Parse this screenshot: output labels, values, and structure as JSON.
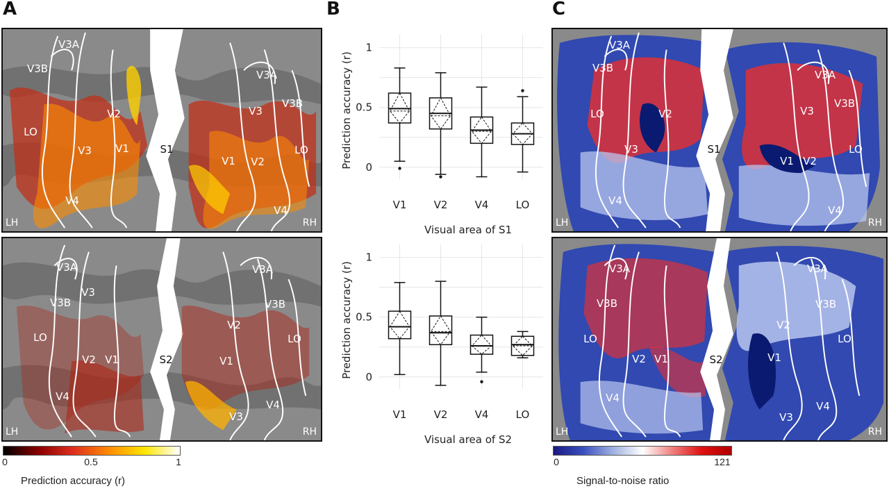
{
  "panels": {
    "a_letter": "A",
    "b_letter": "B",
    "c_letter": "C"
  },
  "brain_labels": {
    "lh": "LH",
    "rh": "RH",
    "s1": "S1",
    "s2": "S2",
    "v1": "V1",
    "v2": "V2",
    "v3": "V3",
    "v4": "V4",
    "v3a": "V3A",
    "v3b": "V3B",
    "lo": "LO"
  },
  "colorbar_accuracy": {
    "title": "Prediction accuracy (r)",
    "ticks": [
      "0",
      "0.5",
      "1"
    ],
    "colors": [
      "#000000",
      "#8b0000",
      "#e0301e",
      "#ff8c00",
      "#ffe600",
      "#ffffff"
    ]
  },
  "colorbar_snr": {
    "title": "Signal-to-noise ratio",
    "ticks": [
      "0",
      "121"
    ],
    "colors": [
      "#1a1a80",
      "#3a4fc0",
      "#9fb0e0",
      "#ffffff",
      "#f08080",
      "#e01010",
      "#b00000"
    ]
  },
  "chart_data": [
    {
      "type": "box",
      "title": "",
      "xlabel": "Visual area of S1",
      "ylabel": "Prediction accuracy (r)",
      "ylim": [
        0,
        1
      ],
      "yticks": [
        "0",
        "0.5",
        "1"
      ],
      "grid": true,
      "categories": [
        "V1",
        "V2",
        "V4",
        "LO"
      ],
      "boxes": [
        {
          "whisker_low": 0.05,
          "q1": 0.37,
          "median": 0.49,
          "q3": 0.62,
          "whisker_high": 0.83,
          "mean": 0.47,
          "outliers": [
            -0.01
          ]
        },
        {
          "whisker_low": -0.06,
          "q1": 0.32,
          "median": 0.45,
          "q3": 0.58,
          "whisker_high": 0.79,
          "mean": 0.43,
          "outliers": [
            -0.08
          ]
        },
        {
          "whisker_low": -0.08,
          "q1": 0.2,
          "median": 0.31,
          "q3": 0.42,
          "whisker_high": 0.67,
          "mean": 0.3,
          "outliers": []
        },
        {
          "whisker_low": -0.04,
          "q1": 0.19,
          "median": 0.28,
          "q3": 0.37,
          "whisker_high": 0.59,
          "mean": 0.28,
          "outliers": [
            0.64
          ]
        }
      ]
    },
    {
      "type": "box",
      "title": "",
      "xlabel": "Visual area of S2",
      "ylabel": "Prediction accuracy (r)",
      "ylim": [
        0,
        1
      ],
      "yticks": [
        "0",
        "0.5",
        "1"
      ],
      "grid": true,
      "categories": [
        "V1",
        "V2",
        "V4",
        "LO"
      ],
      "boxes": [
        {
          "whisker_low": 0.02,
          "q1": 0.32,
          "median": 0.42,
          "q3": 0.55,
          "whisker_high": 0.79,
          "mean": 0.42,
          "outliers": []
        },
        {
          "whisker_low": -0.07,
          "q1": 0.27,
          "median": 0.37,
          "q3": 0.51,
          "whisker_high": 0.8,
          "mean": 0.38,
          "outliers": []
        },
        {
          "whisker_low": 0.04,
          "q1": 0.19,
          "median": 0.26,
          "q3": 0.35,
          "whisker_high": 0.5,
          "mean": 0.26,
          "outliers": [
            -0.04
          ]
        },
        {
          "whisker_low": 0.16,
          "q1": 0.18,
          "median": 0.27,
          "q3": 0.34,
          "whisker_high": 0.38,
          "mean": 0.26,
          "outliers": []
        }
      ]
    }
  ]
}
